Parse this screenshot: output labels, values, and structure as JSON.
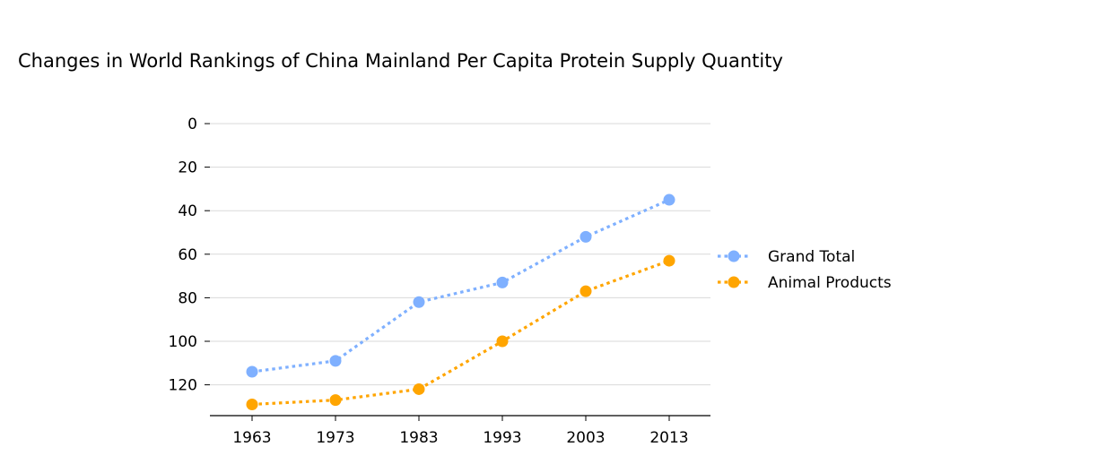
{
  "chart_data": {
    "type": "line",
    "title": "Changes in World Rankings of China Mainland Per Capita Protein Supply Quantity",
    "xlabel": "",
    "ylabel": "",
    "x": [
      "1963",
      "1973",
      "1983",
      "1993",
      "2003",
      "2013"
    ],
    "ylim": [
      0,
      133
    ],
    "y_inverted": true,
    "yticks": [
      0,
      20,
      40,
      60,
      80,
      100,
      120
    ],
    "grid": "horizontal",
    "legend_position": "right",
    "series": [
      {
        "name": "Grand Total",
        "color": "#7fb0ff",
        "values": [
          114,
          109,
          82,
          73,
          52,
          35
        ]
      },
      {
        "name": "Animal Products",
        "color": "#ffa500",
        "values": [
          129,
          127,
          122,
          100,
          77,
          63
        ]
      }
    ]
  }
}
